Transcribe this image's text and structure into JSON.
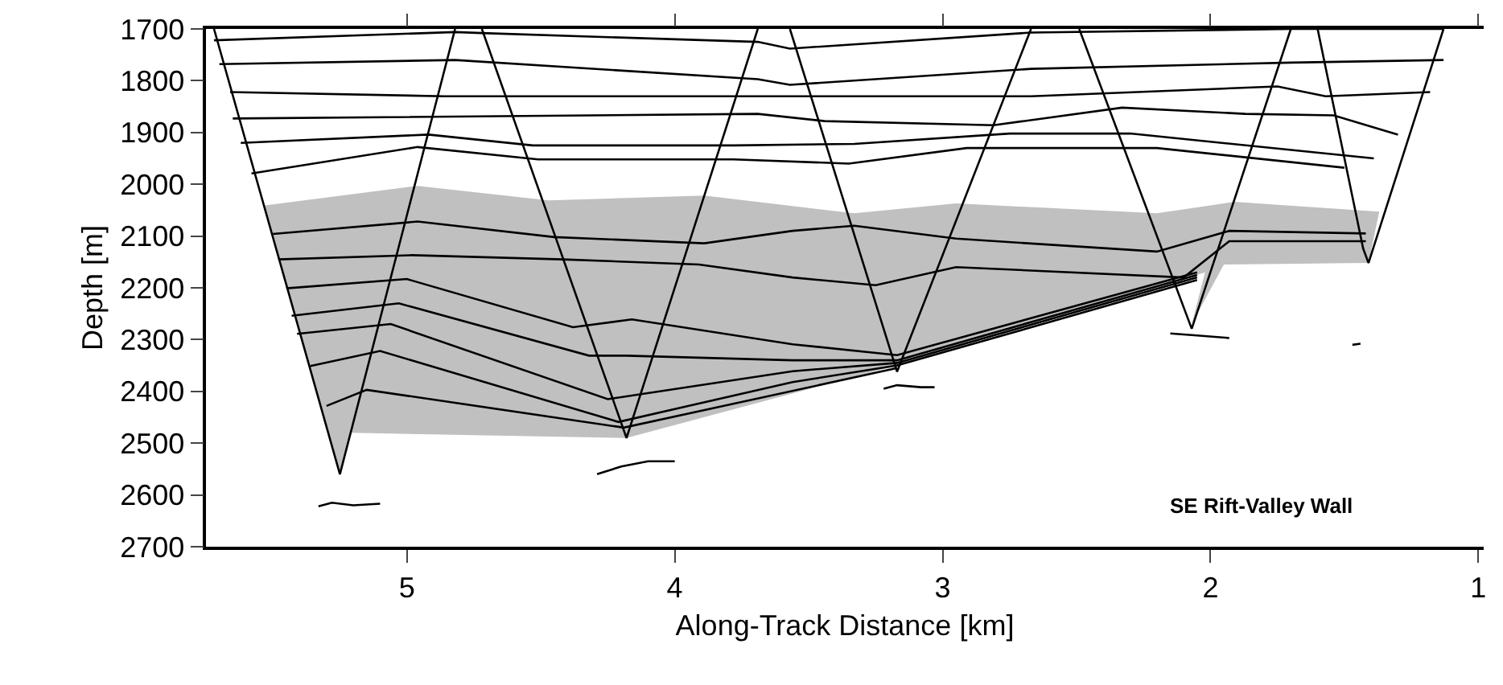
{
  "chart_data": {
    "type": "line",
    "xlabel": "Along-Track Distance [km]",
    "ylabel": "Depth [m]",
    "annotations": [
      "SE Rift-Valley Wall"
    ],
    "xlim": [
      5.75,
      0.98
    ],
    "xticks": [
      5,
      4,
      3,
      2,
      1
    ],
    "ylim": [
      2700,
      1700
    ],
    "yticks": [
      1700,
      1800,
      1900,
      2000,
      2100,
      2200,
      2300,
      2400,
      2500,
      2600,
      2700
    ],
    "grid": false,
    "marker": "none",
    "line_style": "solid",
    "series": [
      {
        "type": "area",
        "color": "#c0c0c0",
        "x": [
          5.53,
          4.96,
          4.47,
          3.89,
          3.33,
          2.95,
          2.2,
          1.91,
          1.37,
          1.41,
          1.95,
          2.07,
          2.02,
          3.17,
          4.18,
          5.21,
          5.25,
          5.53
        ],
        "values": [
          2041,
          2003,
          2031,
          2022,
          2056,
          2037,
          2056,
          2034,
          2053,
          2152,
          2155,
          2270,
          2170,
          2350,
          2490,
          2480,
          2560,
          2041
        ]
      },
      {
        "color": "#000000",
        "x": [
          5.72,
          5.25,
          4.82
        ],
        "values": [
          1700,
          2560,
          1700
        ]
      },
      {
        "color": "#000000",
        "x": [
          4.72,
          4.18,
          3.69
        ],
        "values": [
          1700,
          2490,
          1700
        ]
      },
      {
        "color": "#000000",
        "x": [
          3.57,
          3.17,
          2.67
        ],
        "values": [
          1700,
          2362,
          1700
        ]
      },
      {
        "color": "#000000",
        "x": [
          2.49,
          2.07,
          1.7
        ],
        "values": [
          1700,
          2279,
          1700
        ]
      },
      {
        "color": "#000000",
        "x": [
          1.6,
          1.43,
          1.41,
          1.13
        ],
        "values": [
          1700,
          2124,
          2152,
          1700
        ]
      },
      {
        "color": "#000000",
        "x": [
          5.72,
          4.82,
          4.72,
          3.69,
          3.57,
          2.67,
          1.7,
          1.13
        ],
        "values": [
          1722,
          1706,
          1708,
          1725,
          1738,
          1707,
          1700,
          1700
        ]
      },
      {
        "color": "#000000",
        "x": [
          5.7,
          4.82,
          3.69,
          3.57,
          2.67,
          1.7,
          1.13
        ],
        "values": [
          1768,
          1760,
          1797,
          1808,
          1777,
          1765,
          1760
        ]
      },
      {
        "color": "#000000",
        "x": [
          5.66,
          4.86,
          3.69,
          2.67,
          1.75,
          1.57,
          1.18
        ],
        "values": [
          1822,
          1830,
          1830,
          1830,
          1811,
          1830,
          1822
        ]
      },
      {
        "color": "#000000",
        "x": [
          5.65,
          3.69,
          3.44,
          2.81,
          2.33,
          1.87,
          1.54,
          1.3
        ],
        "values": [
          1873,
          1864,
          1878,
          1886,
          1852,
          1864,
          1867,
          1904
        ]
      },
      {
        "color": "#000000",
        "x": [
          5.62,
          4.92,
          4.53,
          3.78,
          3.33,
          2.75,
          2.3,
          1.39
        ],
        "values": [
          1920,
          1904,
          1925,
          1925,
          1922,
          1902,
          1902,
          1950
        ]
      },
      {
        "color": "#000000",
        "x": [
          5.58,
          4.96,
          4.51,
          3.78,
          3.35,
          2.91,
          2.2,
          1.5
        ],
        "values": [
          1979,
          1928,
          1952,
          1952,
          1960,
          1930,
          1930,
          1968
        ]
      },
      {
        "color": "#000000",
        "x": [
          5.5,
          4.96,
          4.45,
          3.89,
          3.56,
          3.33,
          2.95,
          2.2,
          1.93,
          1.42
        ],
        "values": [
          2096,
          2072,
          2102,
          2114,
          2090,
          2080,
          2105,
          2130,
          2090,
          2095
        ]
      },
      {
        "color": "#000000",
        "x": [
          5.48,
          4.98,
          4.42,
          3.91,
          3.56,
          3.25,
          2.95,
          2.1,
          1.93,
          1.42
        ],
        "values": [
          2145,
          2137,
          2145,
          2155,
          2180,
          2195,
          2160,
          2180,
          2110,
          2110
        ]
      },
      {
        "color": "#000000",
        "x": [
          5.45,
          5,
          4.38,
          4.16,
          3.56,
          3.17,
          2.05
        ],
        "values": [
          2201,
          2183,
          2276,
          2261,
          2309,
          2330,
          2170
        ]
      },
      {
        "color": "#000000",
        "x": [
          5.43,
          5.03,
          4.32,
          4.18,
          3.56,
          3.17,
          2.05
        ],
        "values": [
          2254,
          2230,
          2331,
          2331,
          2340,
          2340,
          2175
        ]
      },
      {
        "color": "#000000",
        "x": [
          5.41,
          5.06,
          4.25,
          3.56,
          3.17,
          2.05
        ],
        "values": [
          2289,
          2270,
          2415,
          2361,
          2345,
          2180
        ]
      },
      {
        "color": "#000000",
        "x": [
          5.36,
          5.1,
          4.21,
          3.56,
          3.17,
          2.05
        ],
        "values": [
          2351,
          2322,
          2459,
          2382,
          2350,
          2185
        ]
      },
      {
        "color": "#000000",
        "x": [
          5.3,
          5.15,
          4.19,
          3.17
        ],
        "values": [
          2428,
          2397,
          2470,
          2355
        ]
      },
      {
        "color": "#000000",
        "x": [
          5.33,
          5.28,
          5.2,
          5.1
        ],
        "values": [
          2622,
          2615,
          2620,
          2617
        ]
      },
      {
        "color": "#000000",
        "x": [
          4.29,
          4.2,
          4.1,
          4.0
        ],
        "values": [
          2560,
          2545,
          2535,
          2535
        ]
      },
      {
        "color": "#000000",
        "x": [
          3.22,
          3.17,
          3.08,
          3.03
        ],
        "values": [
          2395,
          2388,
          2392,
          2392
        ]
      },
      {
        "color": "#000000",
        "x": [
          2.15,
          2.05,
          1.93
        ],
        "values": [
          2288,
          2292,
          2297
        ]
      },
      {
        "color": "#000000",
        "x": [
          1.47,
          1.44
        ],
        "values": [
          2310,
          2308
        ]
      }
    ]
  }
}
